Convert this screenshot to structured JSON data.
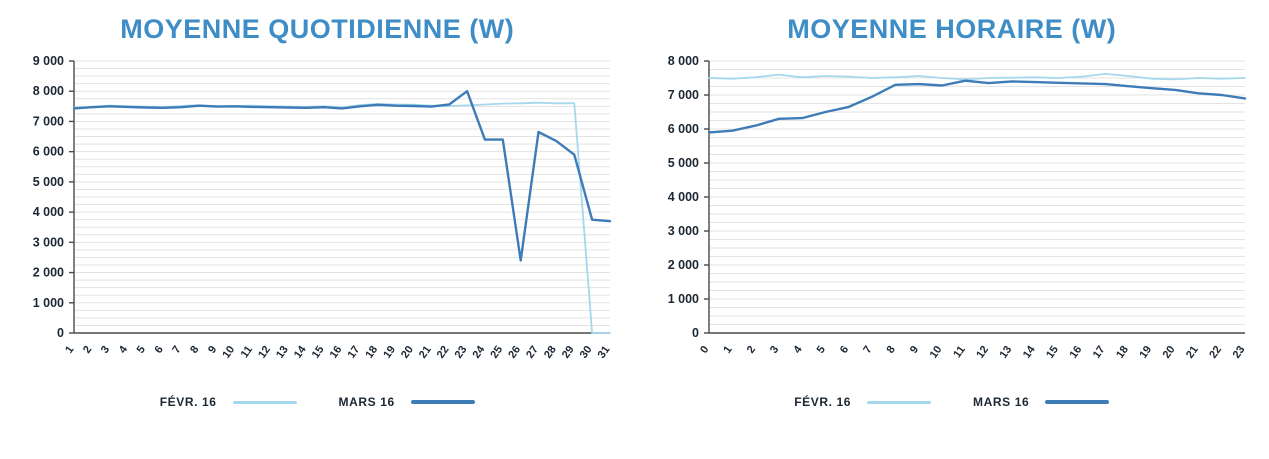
{
  "colors": {
    "title": "#3e8dc6",
    "axis_text": "#1b2733",
    "gridline": "#e3e3e3",
    "axis_line": "#4a4a4a",
    "background": "#ffffff",
    "febr_line": "#a5d8ed",
    "mars_line": "#3e7cb7"
  },
  "legend": {
    "items": [
      {
        "label": "FÉVR. 16",
        "color": "#a5d8ed"
      },
      {
        "label": "MARS 16",
        "color": "#3e7cb7"
      }
    ]
  },
  "chart_data": [
    {
      "type": "line",
      "title": "MOYENNE QUOTIDIENNE (W)",
      "xlabel": "",
      "ylabel": "",
      "ylim": [
        0,
        9000
      ],
      "ytick_step": 1000,
      "grid_step": 250,
      "grid": true,
      "legend_position": "bottom",
      "yticks": [
        "0",
        "1 000",
        "2 000",
        "3 000",
        "4 000",
        "5 000",
        "6 000",
        "7 000",
        "8 000",
        "9 000"
      ],
      "xticks": [
        "1",
        "2",
        "3",
        "4",
        "5",
        "6",
        "7",
        "8",
        "9",
        "10",
        "11",
        "12",
        "13",
        "14",
        "15",
        "16",
        "17",
        "18",
        "19",
        "20",
        "21",
        "22",
        "23",
        "24",
        "25",
        "26",
        "27",
        "28",
        "29",
        "30",
        "31"
      ],
      "series": [
        {
          "name": "FÉVR. 16",
          "color": "#a5d8ed",
          "values": [
            7450,
            7480,
            7520,
            7500,
            7490,
            7470,
            7510,
            7540,
            7500,
            7510,
            7520,
            7500,
            7490,
            7480,
            7500,
            7460,
            7540,
            7580,
            7560,
            7550,
            7520,
            7510,
            7530,
            7560,
            7590,
            7600,
            7620,
            7600,
            7600,
            0,
            0
          ]
        },
        {
          "name": "MARS 16",
          "color": "#3e7cb7",
          "values": [
            7430,
            7470,
            7500,
            7480,
            7460,
            7450,
            7470,
            7520,
            7490,
            7500,
            7480,
            7470,
            7460,
            7450,
            7470,
            7430,
            7500,
            7550,
            7520,
            7510,
            7490,
            7560,
            8000,
            6400,
            6400,
            2400,
            6650,
            6350,
            5900,
            3750,
            3700
          ]
        }
      ]
    },
    {
      "type": "line",
      "title": "MOYENNE HORAIRE (W)",
      "xlabel": "",
      "ylabel": "",
      "ylim": [
        0,
        8000
      ],
      "ytick_step": 1000,
      "grid_step": 250,
      "grid": true,
      "legend_position": "bottom",
      "yticks": [
        "0",
        "1 000",
        "2 000",
        "3 000",
        "4 000",
        "5 000",
        "6 000",
        "7 000",
        "8 000"
      ],
      "xticks": [
        "0",
        "1",
        "2",
        "3",
        "4",
        "5",
        "6",
        "7",
        "8",
        "9",
        "10",
        "11",
        "12",
        "13",
        "14",
        "15",
        "16",
        "17",
        "18",
        "19",
        "20",
        "21",
        "22",
        "23"
      ],
      "series": [
        {
          "name": "FÉVR. 16",
          "color": "#a5d8ed",
          "values": [
            7500,
            7480,
            7520,
            7600,
            7520,
            7560,
            7540,
            7500,
            7520,
            7560,
            7500,
            7460,
            7500,
            7510,
            7520,
            7500,
            7540,
            7620,
            7560,
            7480,
            7460,
            7500,
            7480,
            7500
          ]
        },
        {
          "name": "MARS 16",
          "color": "#3e7cb7",
          "values": [
            5900,
            5950,
            6100,
            6300,
            6320,
            6500,
            6650,
            6950,
            7300,
            7320,
            7280,
            7420,
            7350,
            7400,
            7380,
            7360,
            7340,
            7320,
            7260,
            7200,
            7150,
            7050,
            7000,
            6900
          ]
        }
      ]
    }
  ]
}
